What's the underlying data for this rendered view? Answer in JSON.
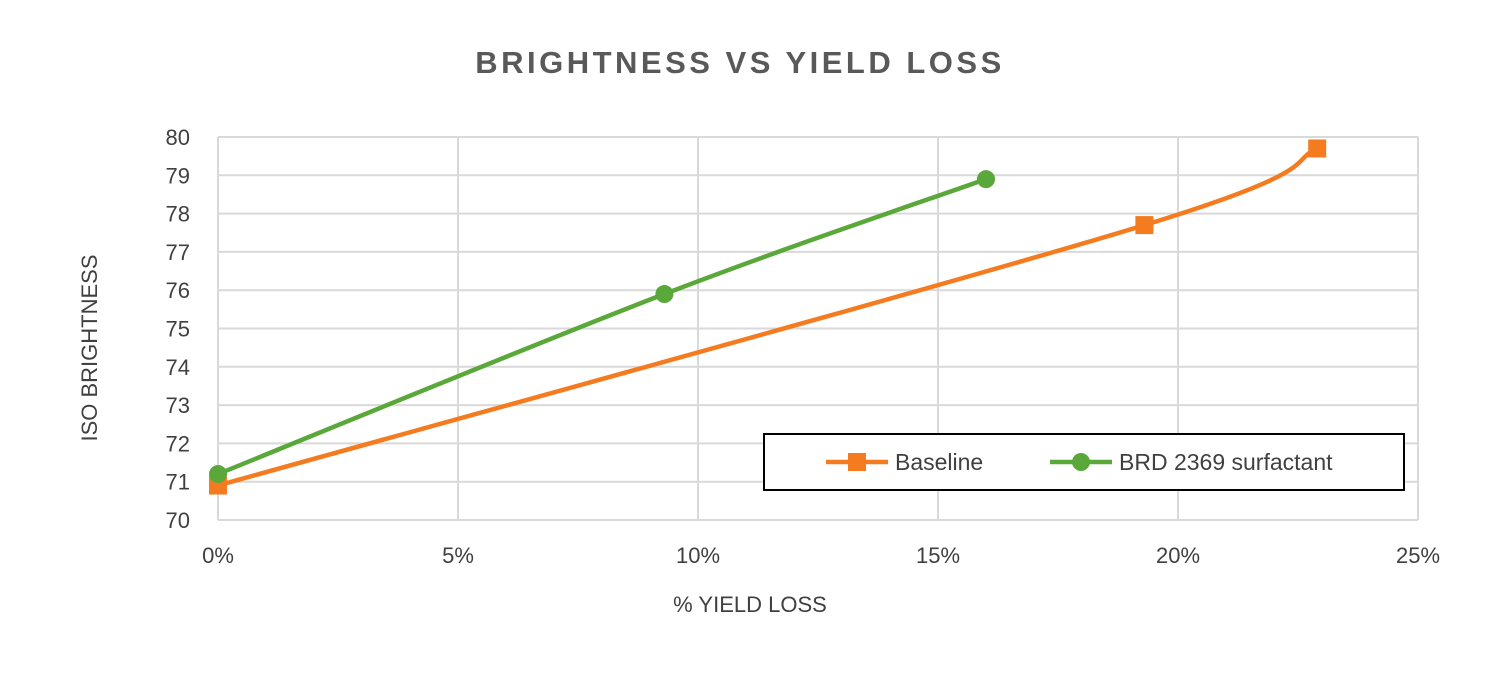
{
  "chart_data": {
    "type": "line",
    "title": "BRIGHTNESS VS YIELD LOSS",
    "xlabel": "% YIELD LOSS",
    "ylabel": "ISO BRIGHTNESS",
    "xlim": [
      0,
      0.25
    ],
    "ylim": [
      70,
      80
    ],
    "x_ticks": [
      "0%",
      "5%",
      "10%",
      "15%",
      "20%",
      "25%"
    ],
    "y_ticks": [
      "70",
      "71",
      "72",
      "73",
      "74",
      "75",
      "76",
      "77",
      "78",
      "79",
      "80"
    ],
    "grid": true,
    "legend_position": "bottom-right",
    "series": [
      {
        "name": "Baseline",
        "color": "#f47b20",
        "marker": "square",
        "x": [
          0.0,
          0.193,
          0.229
        ],
        "y": [
          70.9,
          77.7,
          79.7
        ]
      },
      {
        "name": "BRD 2369 surfactant",
        "color": "#5aa83a",
        "marker": "circle",
        "x": [
          0.0,
          0.093,
          0.16
        ],
        "y": [
          71.2,
          75.9,
          78.9
        ]
      }
    ]
  }
}
